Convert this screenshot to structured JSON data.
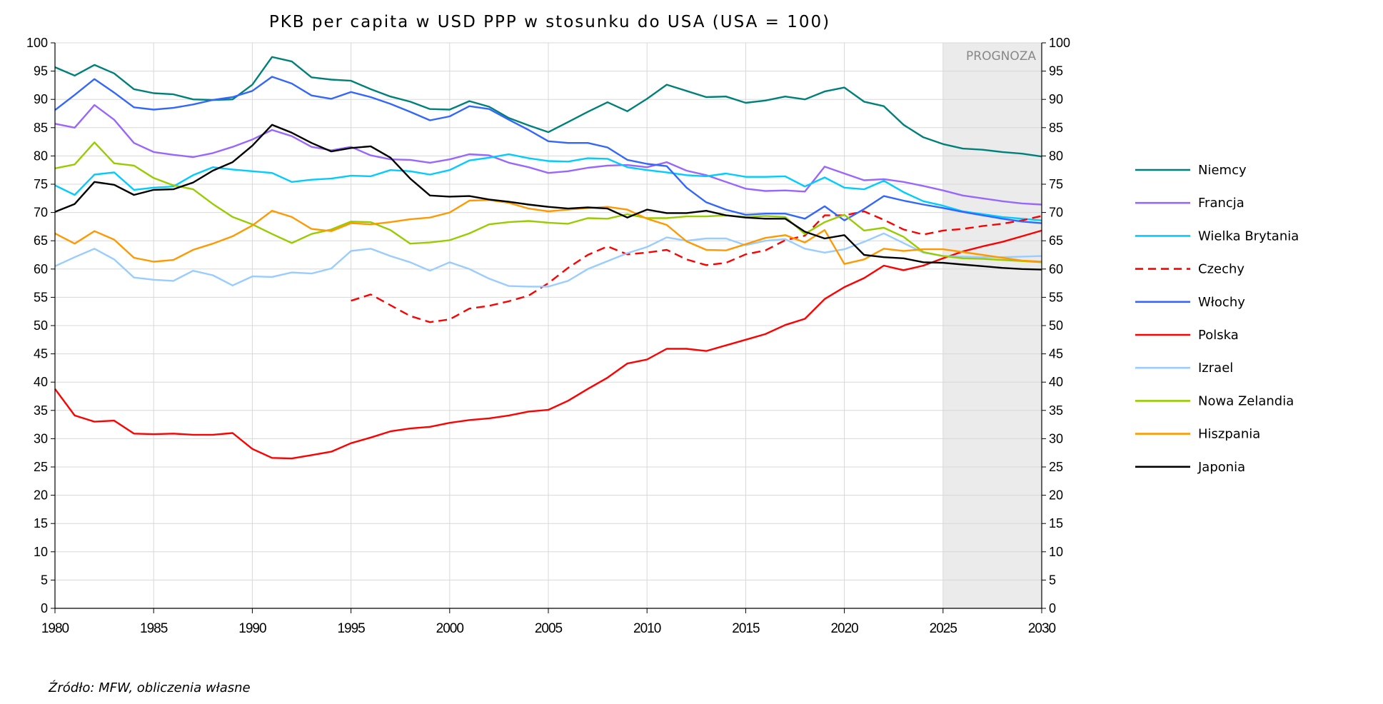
{
  "chart_data": {
    "type": "line",
    "title": "PKB per capita w USD PPP w stosunku do USA (USA = 100)",
    "xlabel": "",
    "ylabel": "",
    "xlim": [
      1980,
      2030
    ],
    "ylim": [
      0,
      100
    ],
    "xticks": [
      1980,
      1985,
      1990,
      1995,
      2000,
      2005,
      2010,
      2015,
      2020,
      2025,
      2030
    ],
    "yticks": [
      0,
      5,
      10,
      15,
      20,
      25,
      30,
      35,
      40,
      45,
      50,
      55,
      60,
      65,
      70,
      75,
      80,
      85,
      90,
      95,
      100
    ],
    "grid": true,
    "legend_position": "right",
    "forecast_region": {
      "label": "PROGNOZA",
      "from": 2025,
      "to": 2030
    },
    "source": "Źródło: MFW, obliczenia własne",
    "series": [
      {
        "name": "Niemcy",
        "color": "#00807a",
        "dashed": false,
        "start": 1980,
        "values": [
          95.7,
          94.2,
          96.1,
          94.6,
          91.8,
          91.1,
          90.9,
          90.0,
          89.9,
          90.0,
          92.6,
          97.5,
          96.7,
          93.9,
          93.5,
          93.3,
          91.8,
          90.5,
          89.6,
          88.3,
          88.2,
          89.7,
          88.7,
          86.7,
          85.4,
          84.2,
          86.0,
          87.8,
          89.5,
          87.9,
          90.1,
          92.6,
          91.5,
          90.4,
          90.5,
          89.4,
          89.8,
          90.5,
          90.0,
          91.4,
          92.1,
          89.6,
          88.8,
          85.5,
          83.3,
          82.1,
          81.3,
          81.1,
          80.7,
          80.4,
          79.9
        ]
      },
      {
        "name": "Francja",
        "color": "#9966ff",
        "dashed": false,
        "start": 1980,
        "values": [
          85.7,
          85.0,
          89.0,
          86.4,
          82.3,
          80.7,
          80.2,
          79.8,
          80.5,
          81.6,
          82.9,
          84.6,
          83.5,
          81.6,
          81.0,
          81.6,
          80.1,
          79.4,
          79.3,
          78.8,
          79.4,
          80.3,
          80.1,
          78.8,
          78.0,
          77.0,
          77.3,
          77.9,
          78.3,
          78.4,
          78.0,
          78.9,
          77.4,
          76.6,
          75.4,
          74.2,
          73.8,
          73.9,
          73.7,
          78.1,
          76.9,
          75.7,
          75.9,
          75.4,
          74.7,
          73.9,
          73.0,
          72.5,
          72.0,
          71.6,
          71.4
        ]
      },
      {
        "name": "Wielka Brytania",
        "color": "#00ccff",
        "dashed": false,
        "start": 1980,
        "values": [
          74.8,
          73.1,
          76.7,
          77.1,
          74.0,
          74.4,
          74.6,
          76.6,
          78.0,
          77.6,
          77.3,
          77.0,
          75.4,
          75.8,
          76.0,
          76.5,
          76.4,
          77.5,
          77.3,
          76.7,
          77.5,
          79.2,
          79.7,
          80.3,
          79.6,
          79.1,
          79.0,
          79.6,
          79.5,
          78.0,
          77.5,
          77.1,
          76.6,
          76.4,
          76.9,
          76.3,
          76.3,
          76.4,
          74.6,
          76.2,
          74.4,
          74.1,
          75.6,
          73.6,
          72.0,
          71.2,
          70.2,
          69.7,
          69.2,
          68.9,
          68.6
        ]
      },
      {
        "name": "Czechy",
        "color": "#ff0000",
        "dashed": true,
        "start": 1995,
        "values": [
          54.4,
          55.5,
          53.6,
          51.7,
          50.6,
          51.1,
          53.0,
          53.5,
          54.3,
          55.3,
          57.5,
          60.2,
          62.5,
          64.0,
          62.6,
          62.9,
          63.4,
          61.7,
          60.7,
          61.1,
          62.6,
          63.3,
          65.1,
          65.9,
          69.5,
          69.5,
          70.2,
          68.7,
          67.0,
          66.1,
          66.8,
          67.1,
          67.6,
          68.0,
          68.6,
          69.4
        ]
      },
      {
        "name": "Włochy",
        "color": "#3366ff",
        "dashed": false,
        "start": 1980,
        "values": [
          88.1,
          90.8,
          93.6,
          91.2,
          88.6,
          88.2,
          88.5,
          89.1,
          89.9,
          90.4,
          91.5,
          94.0,
          92.8,
          90.7,
          90.1,
          91.3,
          90.4,
          89.2,
          87.8,
          86.3,
          87.0,
          88.8,
          88.3,
          86.4,
          84.6,
          82.6,
          82.3,
          82.3,
          81.5,
          79.3,
          78.6,
          78.2,
          74.4,
          71.8,
          70.5,
          69.6,
          69.8,
          69.8,
          68.9,
          71.1,
          68.6,
          70.6,
          72.9,
          72.1,
          71.4,
          70.8,
          70.1,
          69.5,
          68.9,
          68.4,
          68.1
        ]
      },
      {
        "name": "Polska",
        "color": "#ff0000",
        "dashed": false,
        "start": 1980,
        "values": [
          38.8,
          34.1,
          33.0,
          33.2,
          30.9,
          30.8,
          30.9,
          30.7,
          30.7,
          31.0,
          28.2,
          26.6,
          26.5,
          27.1,
          27.7,
          29.2,
          30.2,
          31.3,
          31.8,
          32.1,
          32.8,
          33.3,
          33.6,
          34.1,
          34.8,
          35.1,
          36.7,
          38.8,
          40.8,
          43.3,
          44.0,
          45.9,
          45.9,
          45.5,
          46.5,
          47.5,
          48.5,
          50.1,
          51.2,
          54.7,
          56.8,
          58.4,
          60.6,
          59.8,
          60.6,
          61.9,
          63.1,
          64.0,
          64.8,
          65.8,
          66.8
        ]
      },
      {
        "name": "Izrael",
        "color": "#99ccff",
        "dashed": false,
        "start": 1980,
        "values": [
          60.5,
          62.1,
          63.6,
          61.7,
          58.5,
          58.1,
          57.9,
          59.7,
          58.9,
          57.1,
          58.7,
          58.6,
          59.4,
          59.2,
          60.1,
          63.2,
          63.6,
          62.3,
          61.2,
          59.7,
          61.2,
          60.0,
          58.3,
          57.0,
          56.9,
          56.9,
          57.9,
          60.0,
          61.4,
          62.8,
          63.9,
          65.6,
          65.0,
          65.4,
          65.4,
          64.2,
          65.0,
          65.3,
          63.6,
          62.9,
          63.5,
          64.8,
          66.3,
          64.6,
          62.9,
          62.3,
          62.2,
          62.1,
          62.1,
          62.2,
          62.3
        ]
      },
      {
        "name": "Nowa Zelandia",
        "color": "#99cc00",
        "dashed": false,
        "start": 1980,
        "values": [
          77.8,
          78.5,
          82.4,
          78.7,
          78.3,
          76.1,
          74.8,
          74.1,
          71.5,
          69.2,
          67.9,
          66.2,
          64.6,
          66.2,
          67.0,
          68.4,
          68.3,
          66.9,
          64.5,
          64.7,
          65.1,
          66.3,
          67.9,
          68.3,
          68.5,
          68.2,
          68.0,
          69.0,
          68.9,
          69.7,
          69.0,
          69.0,
          69.3,
          69.3,
          69.5,
          69.2,
          69.4,
          69.2,
          66.2,
          68.3,
          69.6,
          66.8,
          67.3,
          65.7,
          63.0,
          62.3,
          61.9,
          61.8,
          61.6,
          61.4,
          61.2
        ]
      },
      {
        "name": "Hiszpania",
        "color": "#ff9900",
        "dashed": false,
        "start": 1980,
        "values": [
          66.3,
          64.5,
          66.7,
          65.2,
          62.0,
          61.3,
          61.6,
          63.4,
          64.5,
          65.8,
          67.7,
          70.3,
          69.2,
          67.1,
          66.7,
          68.1,
          67.9,
          68.3,
          68.8,
          69.1,
          70.0,
          72.1,
          72.2,
          71.7,
          70.7,
          70.2,
          70.5,
          70.8,
          71.0,
          70.5,
          68.9,
          67.8,
          64.9,
          63.4,
          63.3,
          64.4,
          65.5,
          66.0,
          64.7,
          66.9,
          60.9,
          61.7,
          63.6,
          63.2,
          63.5,
          63.5,
          63.0,
          62.5,
          62.0,
          61.5,
          61.3
        ]
      },
      {
        "name": "Japonia",
        "color": "#000000",
        "dashed": false,
        "start": 1980,
        "values": [
          70.1,
          71.5,
          75.4,
          74.9,
          73.1,
          74.0,
          74.1,
          75.3,
          77.4,
          78.9,
          81.8,
          85.5,
          84.1,
          82.3,
          80.8,
          81.4,
          81.7,
          79.7,
          76.0,
          73.0,
          72.8,
          72.9,
          72.3,
          71.9,
          71.4,
          71.0,
          70.7,
          70.9,
          70.7,
          69.1,
          70.5,
          69.9,
          69.9,
          70.3,
          69.5,
          69.1,
          68.9,
          68.9,
          66.6,
          65.4,
          66.0,
          62.5,
          62.1,
          61.9,
          61.2,
          61.1,
          60.8,
          60.5,
          60.2,
          60.0,
          59.9
        ]
      }
    ]
  }
}
